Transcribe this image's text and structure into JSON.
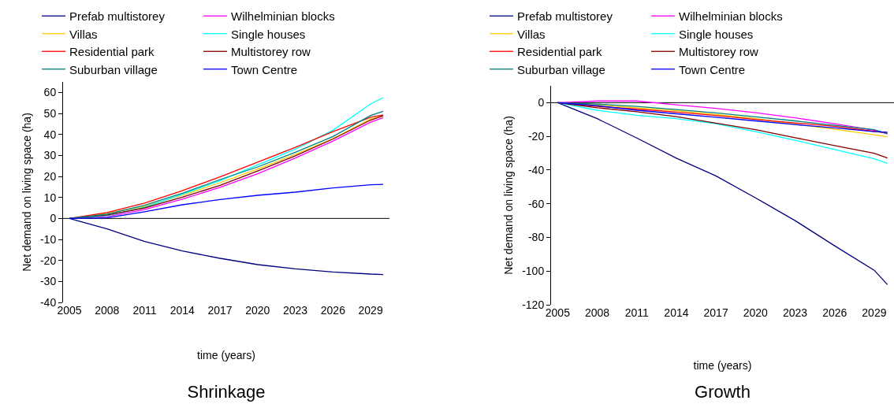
{
  "chart_data": [
    {
      "type": "line",
      "title": "Shrinkage",
      "xlabel": "time (years)",
      "ylabel": "Net demand on living space (ha)",
      "x": [
        2005,
        2008,
        2011,
        2014,
        2017,
        2020,
        2023,
        2026,
        2029,
        2030
      ],
      "xlim": [
        2004.5,
        2030.5
      ],
      "xticks": [
        2005,
        2008,
        2011,
        2014,
        2017,
        2020,
        2023,
        2026,
        2029
      ],
      "ylim": [
        -40,
        65
      ],
      "yticks": [
        -40,
        -30,
        -20,
        -10,
        0,
        10,
        20,
        30,
        40,
        50,
        60
      ],
      "ref_lines": [
        {
          "axis": "y",
          "value": 0,
          "color": "#000000"
        }
      ],
      "grid": false,
      "legend": "top",
      "marker": "none",
      "line_style": "solid",
      "series": [
        {
          "name": "Prefab multistorey",
          "color": "#000080",
          "values": [
            0,
            -5,
            -11,
            -15.5,
            -19,
            -22,
            -24,
            -25.5,
            -26.5,
            -26.7
          ]
        },
        {
          "name": "Wilhelminian blocks",
          "color": "#ff00ff",
          "values": [
            0,
            0.8,
            4.2,
            9.2,
            14.8,
            21.3,
            28.8,
            36.8,
            45.8,
            48
          ]
        },
        {
          "name": "Villas",
          "color": "#ffcc00",
          "values": [
            0,
            2.4,
            5.8,
            11,
            17,
            23.5,
            30.5,
            38,
            47.3,
            48.7
          ]
        },
        {
          "name": "Single houses",
          "color": "#00ffff",
          "values": [
            0,
            1.2,
            5.3,
            11.5,
            18,
            25.5,
            33,
            42,
            54.5,
            57.5
          ]
        },
        {
          "name": "Residential park",
          "color": "#ff0000",
          "values": [
            0,
            2.8,
            7.3,
            13.2,
            19.8,
            26.8,
            33.8,
            41.3,
            48.2,
            49.3
          ]
        },
        {
          "name": "Multistorey row",
          "color": "#800000",
          "values": [
            0,
            1.6,
            5,
            10.1,
            15.7,
            22.6,
            29.8,
            37.8,
            46.8,
            48.9
          ]
        },
        {
          "name": "Suburban village",
          "color": "#008080",
          "values": [
            0,
            2,
            6.3,
            12,
            18.5,
            24.5,
            31.5,
            39,
            49,
            51
          ]
        },
        {
          "name": "Town Centre",
          "color": "#0000ff",
          "values": [
            0,
            0.3,
            3.2,
            6.5,
            9,
            11,
            12.5,
            14.5,
            16,
            16.2
          ]
        }
      ]
    },
    {
      "type": "line",
      "title": "Growth",
      "xlabel": "time (years)",
      "ylabel": "Net demand on living space (ha)",
      "x": [
        2005,
        2008,
        2011,
        2014,
        2017,
        2020,
        2023,
        2026,
        2029,
        2030
      ],
      "xlim": [
        2004.5,
        2030.5
      ],
      "xticks": [
        2005,
        2008,
        2011,
        2014,
        2017,
        2020,
        2023,
        2026,
        2029
      ],
      "ylim": [
        -120,
        10
      ],
      "yticks": [
        -120,
        -100,
        -80,
        -60,
        -40,
        -20,
        0
      ],
      "ref_lines": [
        {
          "axis": "y",
          "value": 0,
          "color": "#000000"
        }
      ],
      "grid": false,
      "legend": "top",
      "marker": "none",
      "line_style": "solid",
      "series": [
        {
          "name": "Prefab multistorey",
          "color": "#000080",
          "values": [
            0,
            -9.5,
            -21,
            -33,
            -43.5,
            -56.5,
            -70,
            -85,
            -99.5,
            -108
          ]
        },
        {
          "name": "Wilhelminian blocks",
          "color": "#ff00ff",
          "values": [
            0,
            1,
            1,
            -1.3,
            -3.4,
            -6,
            -9,
            -12.5,
            -16.4,
            -18.5
          ]
        },
        {
          "name": "Villas",
          "color": "#ffcc00",
          "values": [
            0,
            -1.4,
            -3,
            -4.8,
            -7,
            -9.5,
            -12.8,
            -15.8,
            -19,
            -20.3
          ]
        },
        {
          "name": "Single houses",
          "color": "#00ffff",
          "values": [
            0,
            -4.5,
            -7.5,
            -9.5,
            -12.5,
            -17.2,
            -22.3,
            -27.8,
            -33.3,
            -36
          ]
        },
        {
          "name": "Residential park",
          "color": "#ff0000",
          "values": [
            0,
            -2.2,
            -3.8,
            -5.6,
            -7.6,
            -9.9,
            -12,
            -14,
            -17,
            -18
          ]
        },
        {
          "name": "Multistorey row",
          "color": "#800000",
          "values": [
            0,
            -3,
            -5.4,
            -8.3,
            -12.2,
            -16,
            -20.8,
            -25.5,
            -30,
            -32.8
          ]
        },
        {
          "name": "Suburban village",
          "color": "#008080",
          "values": [
            0,
            -0.8,
            -2.2,
            -4.1,
            -6.1,
            -8.4,
            -10.8,
            -13.4,
            -16,
            -18.5
          ]
        },
        {
          "name": "Town Centre",
          "color": "#0000ff",
          "values": [
            0,
            -1.8,
            -4.5,
            -6.6,
            -8.6,
            -10.8,
            -13,
            -15,
            -17.2,
            -17.5
          ]
        }
      ]
    }
  ]
}
